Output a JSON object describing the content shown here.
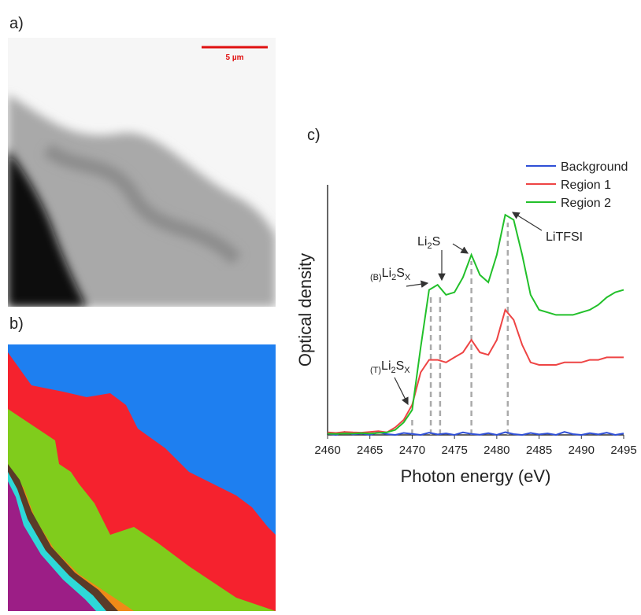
{
  "panels": [
    {
      "label": "a)"
    },
    {
      "label": "b)"
    },
    {
      "label": "c)"
    }
  ],
  "scale_bar": "5 µm",
  "chart_data": {
    "type": "line",
    "xlabel": "Photon energy (eV)",
    "ylabel": "Optical density",
    "x": [
      2460,
      2461,
      2462,
      2463,
      2464,
      2465,
      2466,
      2467,
      2468,
      2469,
      2470,
      2471,
      2472,
      2473,
      2474,
      2475,
      2476,
      2477,
      2478,
      2479,
      2480,
      2481,
      2482,
      2483,
      2484,
      2485,
      2486,
      2487,
      2488,
      2489,
      2490,
      2491,
      2492,
      2493,
      2494,
      2495
    ],
    "xlim": [
      2460,
      2495
    ],
    "xticks": [
      2460,
      2465,
      2470,
      2475,
      2480,
      2485,
      2490,
      2495
    ],
    "ylim": [
      0,
      1
    ],
    "series": [
      {
        "name": "Background",
        "color": "#2f4fd6",
        "values": [
          0.005,
          0.0,
          0.012,
          0.002,
          0.006,
          0.0,
          0.01,
          0.003,
          0.0,
          0.008,
          0.004,
          0.0,
          0.009,
          0.002,
          0.006,
          0.0,
          0.01,
          0.004,
          0.001,
          0.007,
          0.0,
          0.011,
          0.003,
          0.0,
          0.008,
          0.002,
          0.006,
          0.0,
          0.012,
          0.003,
          0.0,
          0.007,
          0.002,
          0.009,
          0.0,
          0.006
        ]
      },
      {
        "name": "Region 1",
        "color": "#ee4444",
        "values": [
          0.01,
          0.008,
          0.012,
          0.01,
          0.009,
          0.012,
          0.015,
          0.01,
          0.03,
          0.06,
          0.12,
          0.25,
          0.3,
          0.3,
          0.29,
          0.31,
          0.33,
          0.38,
          0.33,
          0.32,
          0.38,
          0.5,
          0.46,
          0.36,
          0.29,
          0.28,
          0.28,
          0.28,
          0.29,
          0.29,
          0.29,
          0.3,
          0.3,
          0.31,
          0.31,
          0.31
        ]
      },
      {
        "name": "Region 2",
        "color": "#22c02a",
        "values": [
          0.005,
          0.004,
          0.006,
          0.005,
          0.007,
          0.005,
          0.008,
          0.01,
          0.02,
          0.05,
          0.1,
          0.35,
          0.58,
          0.6,
          0.56,
          0.57,
          0.63,
          0.72,
          0.64,
          0.61,
          0.72,
          0.88,
          0.86,
          0.72,
          0.56,
          0.5,
          0.49,
          0.48,
          0.48,
          0.48,
          0.49,
          0.5,
          0.52,
          0.55,
          0.57,
          0.58
        ]
      }
    ],
    "reference_lines": [
      2470,
      2472.2,
      2473.3,
      2477,
      2481.3
    ],
    "annotations": [
      {
        "segments": [
          {
            "text": "(B)",
            "sub": true
          },
          {
            "text": "Li"
          },
          {
            "text": "2",
            "sub": true
          },
          {
            "text": "S"
          },
          {
            "text": "X",
            "sub": true
          }
        ]
      },
      {
        "segments": [
          {
            "text": "Li"
          },
          {
            "text": "2",
            "sub": true
          },
          {
            "text": "S"
          }
        ]
      },
      {
        "segments": [
          {
            "text": "LiTFSI"
          }
        ]
      },
      {
        "segments": [
          {
            "text": "(T)",
            "sub": true
          },
          {
            "text": "Li"
          },
          {
            "text": "2",
            "sub": true
          },
          {
            "text": "S"
          },
          {
            "text": "X",
            "sub": true
          }
        ]
      }
    ],
    "legend": "upper right"
  }
}
